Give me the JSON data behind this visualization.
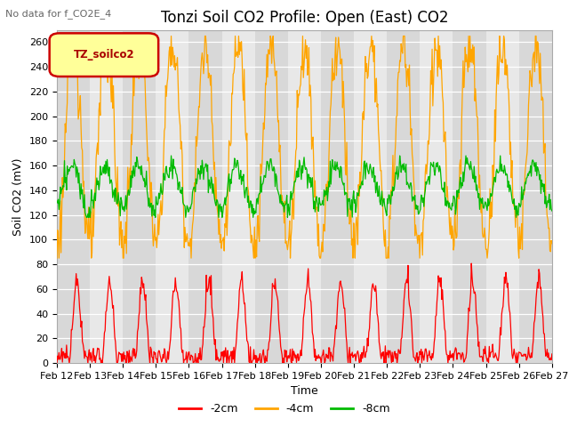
{
  "title": "Tonzi Soil CO2 Profile: Open (East) CO2",
  "top_left_text": "No data for f_CO2E_4",
  "legend_label": "TZ_soilco2",
  "xlabel": "Time",
  "ylabel": "Soil CO2 (mV)",
  "ylim": [
    0,
    270
  ],
  "yticks": [
    0,
    20,
    40,
    60,
    80,
    100,
    120,
    140,
    160,
    180,
    200,
    220,
    240,
    260
  ],
  "x_tick_labels": [
    "Feb 12",
    "Feb 13",
    "Feb 14",
    "Feb 15",
    "Feb 16",
    "Feb 17",
    "Feb 18",
    "Feb 19",
    "Feb 20",
    "Feb 21",
    "Feb 22",
    "Feb 23",
    "Feb 24",
    "Feb 25",
    "Feb 26",
    "Feb 27"
  ],
  "line_colors": {
    "minus2cm": "#ff0000",
    "minus4cm": "#ffa500",
    "minus8cm": "#00bb00"
  },
  "legend_entries": [
    "-2cm",
    "-4cm",
    "-8cm"
  ],
  "bg_color_odd": "#d8d8d8",
  "bg_color_even": "#e8e8e8",
  "title_fontsize": 12,
  "label_fontsize": 9,
  "tick_fontsize": 8
}
